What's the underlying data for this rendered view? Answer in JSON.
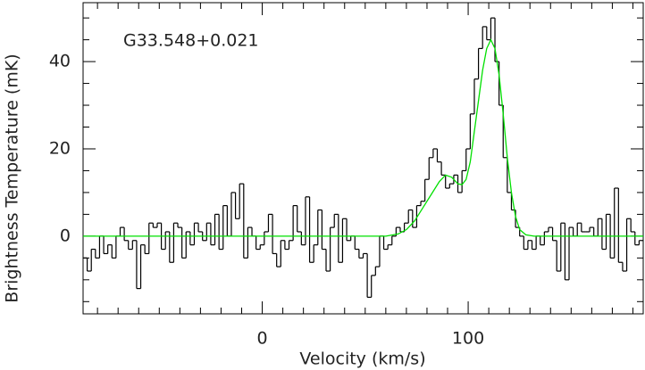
{
  "chart_data": {
    "type": "step",
    "annotation": "G33.548+0.021",
    "xlabel": "Velocity (km/s)",
    "ylabel": "Brightness Temperature (mK)",
    "xlim": [
      -87,
      185
    ],
    "ylim": [
      -17.8,
      53.5
    ],
    "xticks": [
      0,
      100
    ],
    "yticks": [
      0,
      20,
      40
    ],
    "xminorticks": [
      -80,
      -70,
      -60,
      -50,
      -40,
      -30,
      -20,
      -10,
      10,
      20,
      30,
      40,
      50,
      60,
      70,
      80,
      90,
      110,
      120,
      130,
      140,
      150,
      160,
      170,
      180
    ],
    "yminorticks": [
      -15,
      -10,
      -5,
      5,
      10,
      15,
      25,
      30,
      35,
      45,
      50
    ],
    "series": [
      {
        "color": "#000000",
        "x": [
          -86,
          -84,
          -82,
          -80,
          -78,
          -76,
          -74,
          -72,
          -70,
          -68,
          -66,
          -64,
          -62,
          -60,
          -58,
          -56,
          -54,
          -52,
          -50,
          -48,
          -46,
          -44,
          -42,
          -40,
          -38,
          -36,
          -34,
          -32,
          -30,
          -28,
          -26,
          -24,
          -22,
          -20,
          -18,
          -16,
          -14,
          -12,
          -10,
          -8,
          -6,
          -4,
          -2,
          0,
          2,
          4,
          6,
          8,
          10,
          12,
          14,
          16,
          18,
          20,
          22,
          24,
          26,
          28,
          30,
          32,
          34,
          36,
          38,
          40,
          42,
          44,
          46,
          48,
          50,
          52,
          54,
          56,
          58,
          60,
          62,
          64,
          66,
          68,
          70,
          72,
          74,
          76,
          78,
          80,
          82,
          84,
          86,
          88,
          90,
          92,
          94,
          96,
          98,
          100,
          102,
          104,
          106,
          108,
          110,
          112,
          114,
          116,
          118,
          120,
          122,
          124,
          126,
          128,
          130,
          132,
          134,
          136,
          138,
          140,
          142,
          144,
          146,
          148,
          150,
          152,
          154,
          156,
          158,
          160,
          162,
          164,
          166,
          168,
          170,
          172,
          174,
          176,
          178,
          180,
          182,
          184
        ],
        "values": [
          -5,
          -8,
          -3,
          -5,
          0,
          -4,
          -2,
          -5,
          0,
          2,
          -1,
          -3,
          -1,
          -12,
          -2,
          -4,
          3,
          2,
          3,
          -3,
          1,
          -6,
          3,
          2,
          -5,
          1,
          -2,
          3,
          1,
          -1,
          3,
          -2,
          5,
          -3,
          7,
          0,
          10,
          4,
          12,
          -5,
          2,
          0,
          -3,
          -2,
          1,
          5,
          -4,
          -7,
          -1,
          -3,
          -1,
          7,
          1,
          -2,
          9,
          -6,
          -2,
          6,
          -3,
          -8,
          2,
          5,
          -6,
          4,
          -1,
          0,
          -3,
          -5,
          -4,
          -14,
          -9,
          -7,
          0,
          -3,
          -2,
          0,
          2,
          1,
          3,
          6,
          2,
          7,
          8,
          13,
          18,
          20,
          17,
          14,
          11,
          12,
          14,
          10,
          15,
          20,
          28,
          36,
          43,
          48,
          45,
          50,
          40,
          30,
          18,
          10,
          6,
          2,
          0,
          -3,
          -1,
          -3,
          0,
          -2,
          1,
          2,
          -1,
          -8,
          3,
          -10,
          2,
          0,
          3,
          1,
          1,
          2,
          0,
          4,
          -3,
          5,
          -5,
          11,
          -6,
          -8,
          4,
          1,
          -2,
          -1
        ]
      },
      {
        "color": "#00e000",
        "x": [
          -87,
          60,
          66,
          70,
          74,
          78,
          82,
          86,
          89,
          92,
          95,
          97,
          99,
          101,
          103,
          105,
          107,
          109,
          111,
          113,
          115,
          117,
          119,
          121,
          123,
          125,
          128,
          132,
          185
        ],
        "values": [
          0,
          0,
          0.5,
          1.5,
          3.5,
          6.5,
          9.5,
          12.5,
          14,
          13.5,
          12,
          11.8,
          13,
          17,
          24,
          31,
          38,
          43,
          45,
          43,
          37,
          28,
          18,
          10,
          4.5,
          1.5,
          0.3,
          0,
          0
        ]
      }
    ]
  }
}
